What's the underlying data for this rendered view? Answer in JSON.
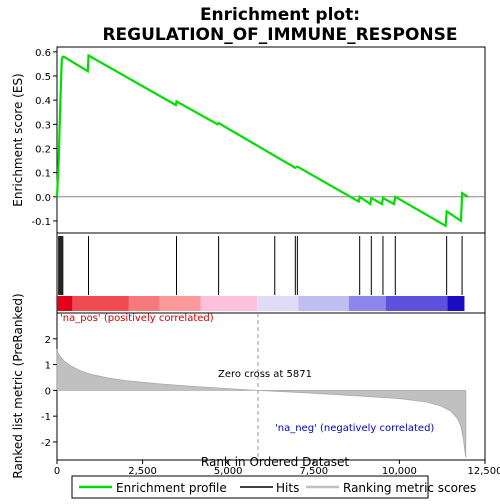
{
  "chart_data": {
    "type": "line",
    "title": "Enrichment plot:",
    "subtitle": "REGULATION_OF_IMMUNE_RESPONSE",
    "top_panel": {
      "ylabel": "Enrichment score (ES)",
      "ylim": [
        -0.15,
        0.62
      ],
      "yticks": [
        -0.1,
        0.0,
        0.1,
        0.2,
        0.3,
        0.4,
        0.5,
        0.6
      ],
      "ytick_labels": [
        "-0.1",
        "0.0",
        "0.1",
        "0.2",
        "0.3",
        "0.4",
        "0.5",
        "0.6"
      ],
      "series": [
        {
          "name": "Enrichment profile",
          "color": "#00dd00",
          "x": [
            0,
            50,
            80,
            110,
            140,
            170,
            200,
            900,
            920,
            3470,
            3490,
            4690,
            4720,
            6960,
            7020,
            8810,
            8840,
            9150,
            9180,
            9490,
            9520,
            9840,
            9880,
            11350,
            11380,
            11800,
            11830,
            12000
          ],
          "y": [
            0.0,
            0.15,
            0.3,
            0.45,
            0.57,
            0.58,
            0.58,
            0.52,
            0.585,
            0.38,
            0.395,
            0.3,
            0.305,
            0.12,
            0.125,
            -0.02,
            0.0,
            -0.03,
            -0.005,
            -0.03,
            -0.005,
            -0.03,
            0.0,
            -0.12,
            -0.06,
            -0.1,
            0.015,
            0.0
          ]
        }
      ]
    },
    "hits": {
      "name": "Hits",
      "positions": [
        50,
        80,
        110,
        140,
        170,
        920,
        3490,
        4720,
        6360,
        6960,
        7020,
        8840,
        9180,
        9520,
        9880,
        11380,
        11830
      ]
    },
    "color_bar": {
      "stops": [
        {
          "start": 0,
          "end": 450,
          "color": "#e3001d"
        },
        {
          "start": 450,
          "end": 2100,
          "color": "#f04a52"
        },
        {
          "start": 2100,
          "end": 3000,
          "color": "#f7787d"
        },
        {
          "start": 3000,
          "end": 4200,
          "color": "#fb999b"
        },
        {
          "start": 4200,
          "end": 5850,
          "color": "#fcc2dc"
        },
        {
          "start": 5850,
          "end": 7050,
          "color": "#e0dcf7"
        },
        {
          "start": 7050,
          "end": 8520,
          "color": "#c0bff4"
        },
        {
          "start": 8520,
          "end": 9600,
          "color": "#8c87eb"
        },
        {
          "start": 9600,
          "end": 11400,
          "color": "#5c52de"
        },
        {
          "start": 11400,
          "end": 11900,
          "color": "#1b0bc4"
        }
      ]
    },
    "bottom_panel": {
      "ylabel": "Ranked list metric (PreRanked)",
      "xlabel": "Rank in Ordered Dataset",
      "xlim": [
        0,
        12500
      ],
      "ylim": [
        -2.7,
        3.0
      ],
      "xticks": [
        0,
        2500,
        5000,
        7500,
        10000,
        12500
      ],
      "xtick_labels": [
        "0",
        "2,500",
        "5,000",
        "7,500",
        "10,000",
        "12,500"
      ],
      "yticks": [
        -2,
        -1,
        0,
        1,
        2
      ],
      "ytick_labels": [
        "-2",
        "-1",
        "0",
        "1",
        "2"
      ],
      "metric_curve": {
        "x": [
          0,
          30,
          100,
          200,
          400,
          700,
          1000,
          1500,
          2000,
          3000,
          4000,
          5000,
          5871,
          7000,
          8000,
          9000,
          10000,
          10800,
          11200,
          11500,
          11700,
          11800,
          11870,
          11920,
          11940
        ],
        "y": [
          1.6,
          1.45,
          1.3,
          1.15,
          0.95,
          0.75,
          0.62,
          0.48,
          0.38,
          0.25,
          0.15,
          0.07,
          0.0,
          -0.08,
          -0.15,
          -0.23,
          -0.32,
          -0.45,
          -0.6,
          -0.8,
          -1.1,
          -1.4,
          -1.9,
          -2.4,
          -2.6
        ]
      },
      "zero_cross": 5871,
      "zero_cross_label": "Zero cross at 5871",
      "pos_label": "'na_pos' (positively correlated)",
      "neg_label": "'na_neg' (negatively correlated)"
    },
    "legend": [
      {
        "name": "Enrichment profile",
        "color": "#00dd00"
      },
      {
        "name": "Hits",
        "color": "#000000"
      },
      {
        "name": "Ranking metric scores",
        "color": "#c0c0c0"
      }
    ]
  }
}
